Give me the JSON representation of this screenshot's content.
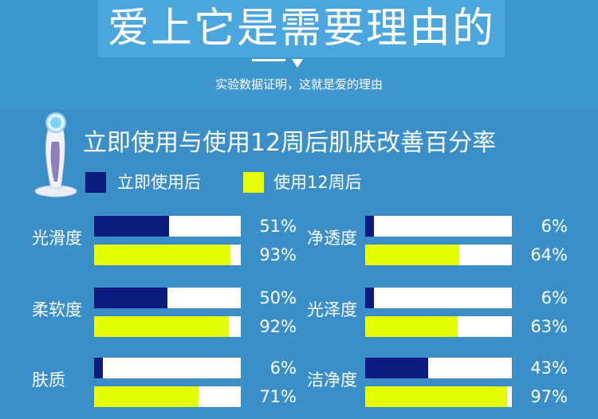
{
  "header": {
    "title": "爱上它是需要理由的",
    "subtitle": "实验数据证明，这就是爱的理由"
  },
  "colors": {
    "immediate": "#0a1a7e",
    "after_12_weeks": "#e5ff00"
  },
  "chart_data": {
    "type": "bar",
    "orientation": "horizontal",
    "title": "立即使用与使用12周后肌肤改善百分率",
    "legend": [
      {
        "key": "immediate",
        "label": "立即使用后"
      },
      {
        "key": "after_12_weeks",
        "label": "使用12周后"
      }
    ],
    "categories": [
      "光滑度",
      "柔软度",
      "肤质",
      "净透度",
      "光泽度",
      "洁净度"
    ],
    "series": [
      {
        "name": "立即使用后",
        "values": [
          51,
          50,
          6,
          6,
          6,
          43
        ]
      },
      {
        "name": "使用12周后",
        "values": [
          93,
          92,
          71,
          64,
          63,
          97
        ]
      }
    ],
    "labels": [
      {
        "immediate": "51%",
        "after_12_weeks": "93%"
      },
      {
        "immediate": "50%",
        "after_12_weeks": "92%"
      },
      {
        "immediate": "6%",
        "after_12_weeks": "71%"
      },
      {
        "immediate": "6%",
        "after_12_weeks": "64%"
      },
      {
        "immediate": "6%",
        "after_12_weeks": "63%"
      },
      {
        "immediate": "43%",
        "after_12_weeks": "97%"
      }
    ],
    "ylim": [
      0,
      100
    ]
  }
}
